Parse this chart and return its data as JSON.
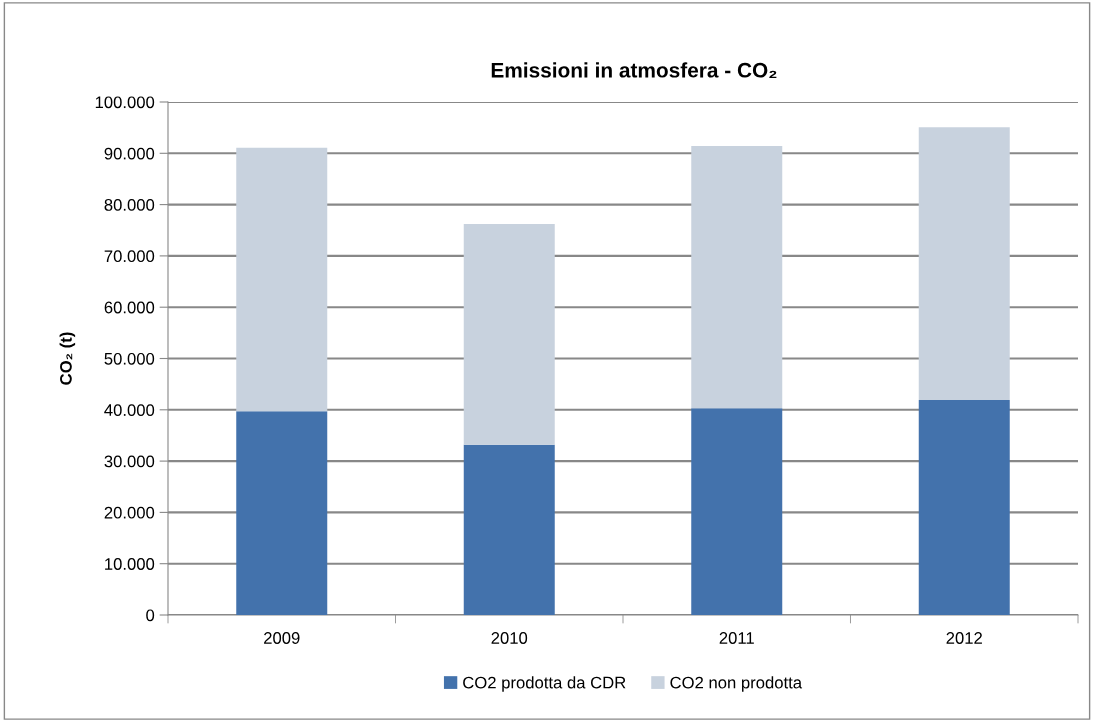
{
  "chart_data": {
    "type": "bar",
    "title": "Emissioni in atmosfera - CO₂",
    "ylabel": "CO₂ (t)",
    "categories": [
      "2009",
      "2010",
      "2011",
      "2012"
    ],
    "stacked": true,
    "series": [
      {
        "name": "CO2 prodotta da CDR",
        "color": "#4372ac",
        "values": [
          39700,
          33200,
          40300,
          41900
        ]
      },
      {
        "name": "CO2 non prodotta",
        "color": "#c8d2de",
        "values": [
          51400,
          43000,
          51100,
          53200
        ]
      }
    ],
    "ylim": [
      0,
      100000
    ],
    "yticks": [
      {
        "value": 0,
        "label": "0"
      },
      {
        "value": 10000,
        "label": "10.000"
      },
      {
        "value": 20000,
        "label": "20.000"
      },
      {
        "value": 30000,
        "label": "30.000"
      },
      {
        "value": 40000,
        "label": "40.000"
      },
      {
        "value": 50000,
        "label": "50.000"
      },
      {
        "value": 60000,
        "label": "60.000"
      },
      {
        "value": 70000,
        "label": "70.000"
      },
      {
        "value": 80000,
        "label": "80.000"
      },
      {
        "value": 90000,
        "label": "90.000"
      },
      {
        "value": 100000,
        "label": "100.000"
      }
    ],
    "grid": "y",
    "legend": "bottom"
  }
}
